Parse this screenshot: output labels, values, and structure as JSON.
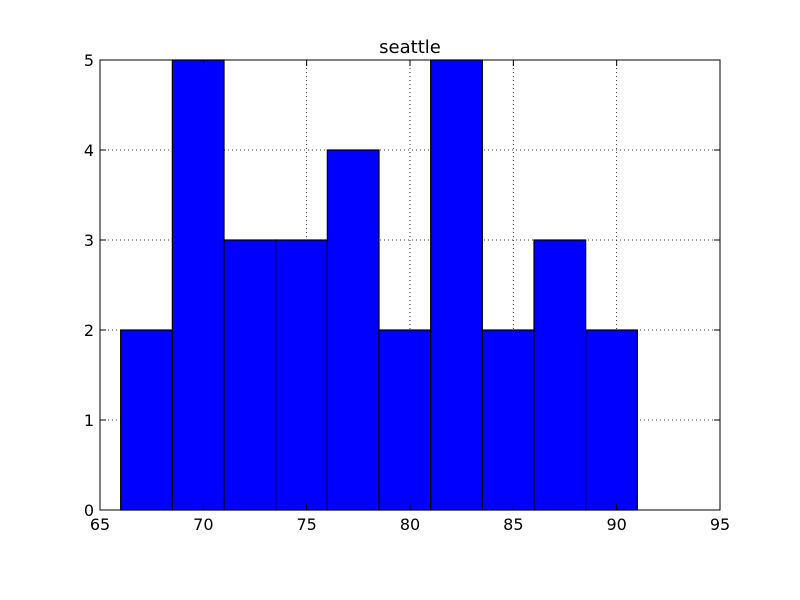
{
  "chart_data": {
    "type": "bar",
    "variant": "histogram",
    "title": "seattle",
    "xlabel": "",
    "ylabel": "",
    "bins": [
      {
        "x0": 66.0,
        "x1": 68.5,
        "count": 2
      },
      {
        "x0": 68.5,
        "x1": 71.0,
        "count": 5
      },
      {
        "x0": 71.0,
        "x1": 73.5,
        "count": 3
      },
      {
        "x0": 73.5,
        "x1": 76.0,
        "count": 3
      },
      {
        "x0": 76.0,
        "x1": 78.5,
        "count": 4
      },
      {
        "x0": 78.5,
        "x1": 81.0,
        "count": 2
      },
      {
        "x0": 81.0,
        "x1": 83.5,
        "count": 5
      },
      {
        "x0": 83.5,
        "x1": 86.0,
        "count": 2
      },
      {
        "x0": 86.0,
        "x1": 88.5,
        "count": 3
      },
      {
        "x0": 88.5,
        "x1": 91.0,
        "count": 2
      }
    ],
    "xlim": [
      65,
      95
    ],
    "ylim": [
      0,
      5
    ],
    "xticks": [
      65,
      70,
      75,
      80,
      85,
      90,
      95
    ],
    "yticks": [
      0,
      1,
      2,
      3,
      4,
      5
    ],
    "grid": true,
    "legend": "none",
    "colors": {
      "bar": "#0000ff",
      "edge": "#000000",
      "grid": "#000000"
    }
  }
}
